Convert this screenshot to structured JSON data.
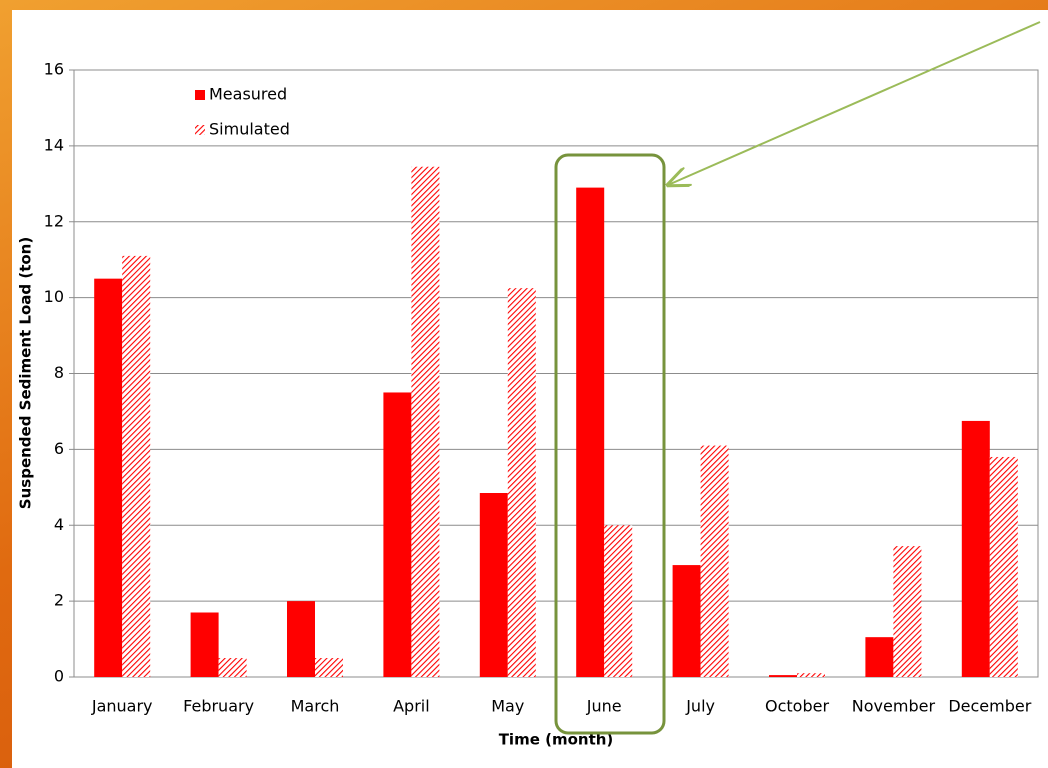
{
  "chart_data": {
    "type": "bar",
    "x_label": "Time (month)",
    "y_label": "Suspended Sediment Load (ton)",
    "categories": [
      "January",
      "February",
      "March",
      "April",
      "May",
      "June",
      "July",
      "October",
      "November",
      "December"
    ],
    "series": [
      {
        "name": "Measured",
        "color": "#ff0000",
        "hatch": false,
        "values": [
          10.5,
          1.7,
          2.0,
          7.5,
          4.85,
          12.9,
          2.95,
          0.05,
          1.05,
          6.75
        ]
      },
      {
        "name": "Simulated",
        "color": "#ff0000",
        "hatch": true,
        "values": [
          11.1,
          0.5,
          0.5,
          13.45,
          10.25,
          4.0,
          6.1,
          0.1,
          3.45,
          5.8
        ]
      }
    ],
    "ylim": [
      0,
      16
    ],
    "yticks": [
      0,
      2,
      4,
      6,
      8,
      10,
      12,
      14,
      16
    ],
    "grid": true,
    "legend": "top-left"
  }
}
